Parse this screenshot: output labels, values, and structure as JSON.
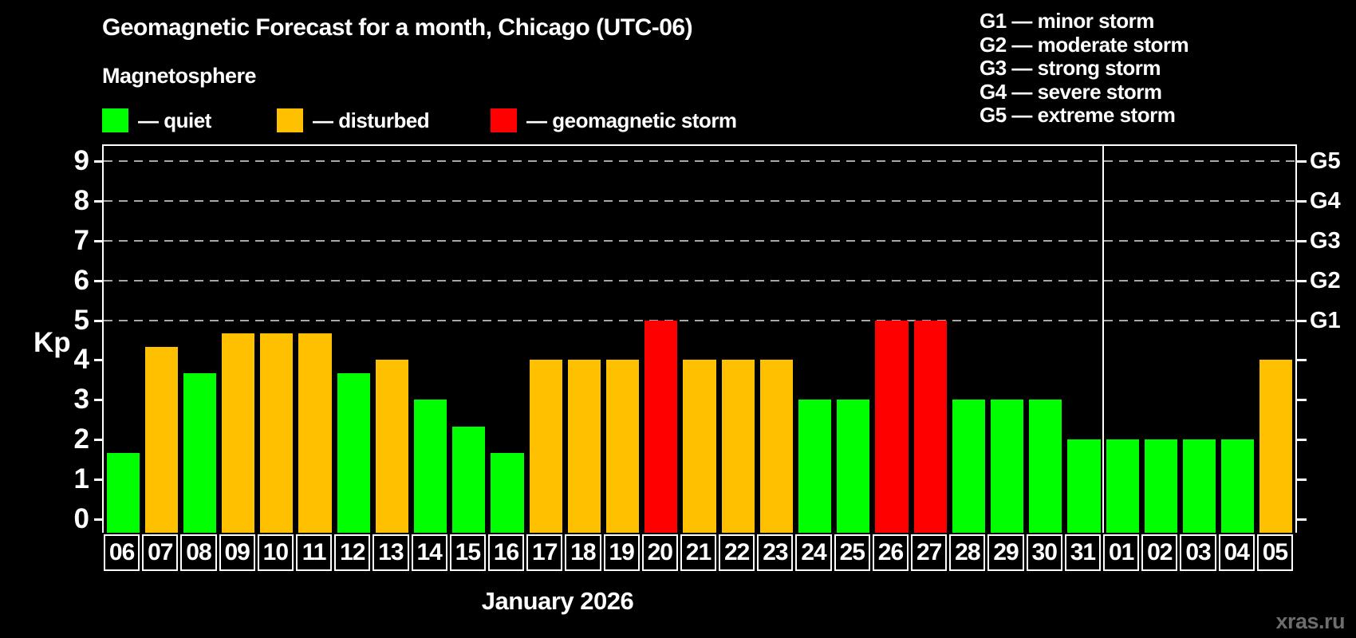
{
  "header": {
    "title": "Geomagnetic Forecast for a month, Chicago (UTC-06)",
    "subtitle": "Magnetosphere"
  },
  "legend": {
    "quiet": {
      "label": "— quiet",
      "color": "#00ff00"
    },
    "disturbed": {
      "label": "— disturbed",
      "color": "#ffc000"
    },
    "storm": {
      "label": "— geomagnetic storm",
      "color": "#ff0000"
    }
  },
  "storm_scale": {
    "g1": "G1 — minor storm",
    "g2": "G2 — moderate storm",
    "g3": "G3 — strong storm",
    "g4": "G4 — severe storm",
    "g5": "G5 — extreme storm"
  },
  "axis": {
    "y_title": "Kp",
    "y_ticks": [
      "0",
      "1",
      "2",
      "3",
      "4",
      "5",
      "6",
      "7",
      "8",
      "9"
    ],
    "right_labels": [
      {
        "text": "G1",
        "kp": 5
      },
      {
        "text": "G2",
        "kp": 6
      },
      {
        "text": "G3",
        "kp": 7
      },
      {
        "text": "G4",
        "kp": 8
      },
      {
        "text": "G5",
        "kp": 9
      }
    ],
    "x_title": "January 2026"
  },
  "watermark": "xras.ru",
  "chart_data": {
    "type": "bar",
    "title": "Geomagnetic Forecast for a month, Chicago (UTC-06)",
    "xlabel": "January 2026",
    "ylabel": "Kp",
    "ylim": [
      0,
      9.4
    ],
    "grid": "dashed horizontal at storm levels only",
    "gridlines_at": [
      5,
      6,
      7,
      8,
      9
    ],
    "legend_position": "top-left",
    "categories": [
      "06",
      "07",
      "08",
      "09",
      "10",
      "11",
      "12",
      "13",
      "14",
      "15",
      "16",
      "17",
      "18",
      "19",
      "20",
      "21",
      "22",
      "23",
      "24",
      "25",
      "26",
      "27",
      "28",
      "29",
      "30",
      "31",
      "01",
      "02",
      "03",
      "04",
      "05"
    ],
    "values": [
      1.67,
      4.33,
      3.67,
      4.67,
      4.67,
      4.67,
      3.67,
      4.0,
      3.0,
      2.33,
      1.67,
      4.0,
      4.0,
      4.0,
      5.0,
      4.0,
      4.0,
      4.0,
      3.0,
      3.0,
      5.0,
      5.0,
      3.0,
      3.0,
      3.0,
      2.0,
      2.0,
      2.0,
      2.0,
      2.0,
      4.0
    ],
    "states": [
      "quiet",
      "disturbed",
      "quiet",
      "disturbed",
      "disturbed",
      "disturbed",
      "quiet",
      "disturbed",
      "quiet",
      "quiet",
      "quiet",
      "disturbed",
      "disturbed",
      "disturbed",
      "storm",
      "disturbed",
      "disturbed",
      "disturbed",
      "quiet",
      "quiet",
      "storm",
      "storm",
      "quiet",
      "quiet",
      "quiet",
      "quiet",
      "quiet",
      "quiet",
      "quiet",
      "quiet",
      "disturbed"
    ],
    "colors": {
      "quiet": "#00ff00",
      "disturbed": "#ffc000",
      "storm": "#ff0000"
    },
    "month_boundary_index": 26
  }
}
